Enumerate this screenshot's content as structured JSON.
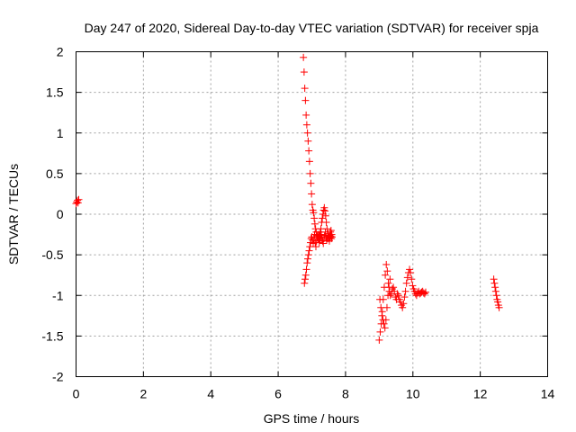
{
  "chart_data": {
    "type": "scatter",
    "title": "Day 247 of 2020, Sidereal Day-to-day VTEC variation (SDTVAR) for receiver spja",
    "xlabel": "GPS time / hours",
    "ylabel": "SDTVAR / TECUs",
    "xlim": [
      0,
      14
    ],
    "ylim": [
      -2,
      2
    ],
    "xticks": [
      0,
      2,
      4,
      6,
      8,
      10,
      12,
      14
    ],
    "yticks": [
      -2,
      -1.5,
      -1,
      -0.5,
      0,
      0.5,
      1,
      1.5,
      2
    ],
    "xtick_labels": [
      "0",
      "2",
      "4",
      "6",
      "8",
      "10",
      "12",
      "14"
    ],
    "ytick_labels": [
      "-2",
      "-1.5",
      "-1",
      "-0.5",
      "0",
      "0.5",
      "1",
      "1.5",
      "2"
    ],
    "grid": true,
    "marker": "+",
    "series": [
      {
        "name": "SDTVAR",
        "color": "#ff0000",
        "x": [
          0.0,
          0.02,
          0.04,
          0.06,
          0.08,
          6.75,
          6.77,
          6.79,
          6.81,
          6.83,
          6.85,
          6.87,
          6.89,
          6.91,
          6.93,
          6.95,
          6.97,
          6.99,
          7.01,
          7.03,
          7.05,
          7.07,
          7.09,
          7.11,
          7.13,
          7.15,
          7.17,
          7.19,
          7.21,
          7.23,
          7.25,
          7.27,
          7.29,
          7.31,
          7.33,
          7.35,
          7.37,
          7.39,
          7.41,
          7.43,
          7.45,
          7.47,
          7.49,
          7.51,
          7.53,
          7.55,
          7.57,
          7.59,
          6.78,
          6.8,
          6.82,
          6.84,
          6.86,
          6.88,
          6.9,
          6.92,
          6.94,
          6.96,
          6.98,
          7.0,
          7.02,
          7.04,
          7.06,
          7.08,
          7.1,
          7.12,
          7.14,
          7.16,
          7.18,
          7.2,
          7.22,
          7.24,
          7.26,
          7.28,
          7.3,
          7.32,
          7.34,
          7.36,
          7.38,
          7.4,
          7.42,
          7.44,
          7.46,
          7.48,
          7.5,
          7.52,
          7.54,
          7.56,
          7.58,
          7.6,
          9.0,
          9.03,
          9.06,
          9.09,
          9.12,
          9.15,
          9.18,
          9.21,
          9.24,
          9.27,
          9.3,
          9.33,
          9.36,
          9.39,
          9.42,
          9.45,
          9.48,
          9.51,
          9.54,
          9.57,
          9.6,
          9.63,
          9.66,
          9.69,
          9.72,
          9.75,
          9.78,
          9.81,
          9.84,
          9.87,
          9.9,
          9.93,
          9.96,
          9.99,
          10.02,
          10.05,
          10.08,
          10.11,
          10.14,
          10.17,
          10.2,
          10.23,
          10.26,
          10.29,
          10.32,
          10.35,
          10.38,
          9.02,
          9.05,
          9.08,
          9.11,
          9.14,
          9.17,
          9.2,
          9.23,
          9.26,
          9.29,
          9.32,
          12.4,
          12.42,
          12.44,
          12.46,
          12.48,
          12.5,
          12.52,
          12.54,
          12.56
        ],
        "y": [
          0.13,
          0.15,
          0.17,
          0.14,
          0.18,
          1.93,
          1.75,
          1.55,
          1.4,
          1.22,
          1.1,
          1.0,
          0.9,
          0.78,
          0.65,
          0.5,
          0.38,
          0.25,
          0.12,
          0.05,
          0.02,
          -0.05,
          -0.12,
          -0.18,
          -0.22,
          -0.26,
          -0.28,
          -0.3,
          -0.27,
          -0.25,
          -0.22,
          -0.18,
          -0.1,
          -0.05,
          0.0,
          0.05,
          0.08,
          0.04,
          -0.02,
          -0.1,
          -0.18,
          -0.24,
          -0.27,
          -0.3,
          -0.26,
          -0.22,
          -0.2,
          -0.25,
          -0.85,
          -0.8,
          -0.75,
          -0.68,
          -0.6,
          -0.55,
          -0.5,
          -0.45,
          -0.4,
          -0.35,
          -0.3,
          -0.28,
          -0.32,
          -0.36,
          -0.3,
          -0.25,
          -0.35,
          -0.4,
          -0.33,
          -0.28,
          -0.25,
          -0.3,
          -0.35,
          -0.32,
          -0.28,
          -0.25,
          -0.3,
          -0.33,
          -0.36,
          -0.3,
          -0.26,
          -0.22,
          -0.28,
          -0.32,
          -0.3,
          -0.26,
          -0.3,
          -0.33,
          -0.29,
          -0.27,
          -0.3,
          -0.28,
          -1.55,
          -1.45,
          -1.35,
          -1.2,
          -1.05,
          -0.9,
          -0.75,
          -0.62,
          -0.7,
          -0.85,
          -0.95,
          -1.0,
          -0.98,
          -0.92,
          -0.9,
          -0.95,
          -1.02,
          -1.05,
          -0.98,
          -1.0,
          -1.05,
          -1.08,
          -1.12,
          -1.15,
          -1.1,
          -1.02,
          -0.95,
          -0.85,
          -0.78,
          -0.72,
          -0.68,
          -0.72,
          -0.8,
          -0.88,
          -0.92,
          -0.95,
          -0.98,
          -1.0,
          -0.97,
          -0.95,
          -0.98,
          -0.97,
          -0.96,
          -0.95,
          -0.97,
          -0.98,
          -0.96,
          -1.05,
          -1.15,
          -1.25,
          -1.3,
          -1.35,
          -1.4,
          -1.3,
          -1.15,
          -1.0,
          -0.9,
          -0.8,
          -0.8,
          -0.85,
          -0.9,
          -0.95,
          -1.0,
          -1.05,
          -1.08,
          -1.12,
          -1.15
        ]
      }
    ]
  }
}
